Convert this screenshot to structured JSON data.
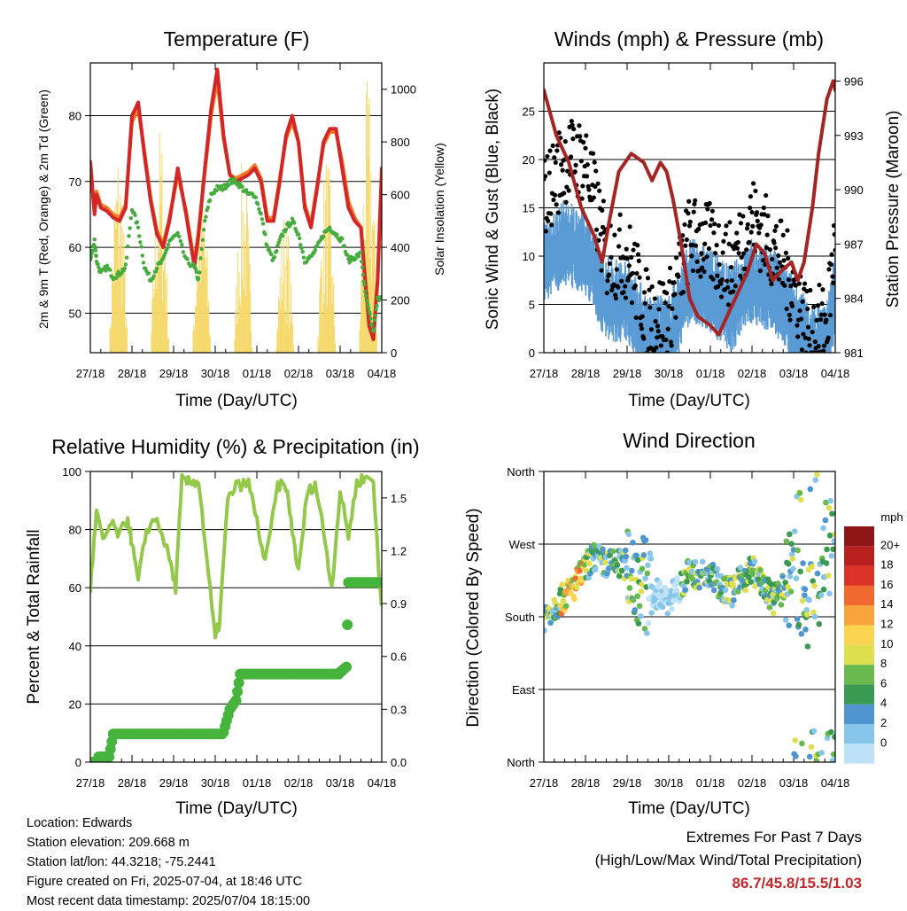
{
  "time_ticks": [
    "27/18",
    "28/18",
    "29/18",
    "30/18",
    "01/18",
    "02/18",
    "03/18",
    "04/18"
  ],
  "xlabel": "Time (Day/UTC)",
  "chart_data": [
    {
      "type": "line",
      "title": "Temperature (F)",
      "xlabel": "Time (Day/UTC)",
      "ylabel": "2m & 9m T (Red, Orange) & 2m Td (Green)",
      "ylabel_right": "Solar Insolation (Yellow)",
      "ylim": [
        44,
        88
      ],
      "yticks": [
        "50",
        "60",
        "70",
        "80"
      ],
      "ylim_right": [
        0,
        1100
      ],
      "yticks_right": [
        "0",
        "200",
        "400",
        "600",
        "800",
        "1000"
      ],
      "x": [
        0,
        0.1,
        0.15,
        0.25,
        0.4,
        0.55,
        0.7,
        0.85,
        1.0,
        1.15,
        1.3,
        1.45,
        1.6,
        1.75,
        1.9,
        2.1,
        2.3,
        2.5,
        2.6,
        2.75,
        2.9,
        3.05,
        3.2,
        3.35,
        3.5,
        3.65,
        3.8,
        3.95,
        4.1,
        4.25,
        4.4,
        4.55,
        4.7,
        4.85,
        5.0,
        5.15,
        5.3,
        5.45,
        5.6,
        5.75,
        5.9,
        6.05,
        6.2,
        6.35,
        6.5,
        6.6,
        6.7,
        6.8,
        6.9,
        7.0
      ],
      "series": [
        {
          "name": "2m T",
          "color": "#d42626",
          "values": [
            73,
            65,
            68,
            66,
            65.5,
            64.5,
            64,
            66,
            80,
            82,
            74,
            67,
            62,
            60,
            64,
            72,
            65,
            57,
            62,
            72,
            81,
            87,
            77,
            71,
            70,
            70.5,
            71,
            72,
            70,
            64,
            64,
            70,
            77,
            80,
            76,
            66,
            63,
            69,
            76,
            78,
            78,
            72,
            66,
            64,
            63,
            55,
            48,
            46,
            55,
            72
          ]
        },
        {
          "name": "9m T",
          "color": "#f07e26",
          "values": [
            72.5,
            65.5,
            68.5,
            66.5,
            66,
            65,
            64.5,
            66.5,
            79,
            81,
            74.5,
            67.5,
            62.5,
            60.5,
            64.5,
            71,
            65.5,
            57.5,
            62.5,
            71.5,
            80,
            85.5,
            76.5,
            71,
            70.5,
            71,
            71.5,
            72.5,
            70.5,
            64.5,
            64.5,
            70.5,
            76.5,
            79,
            76,
            66.5,
            63.5,
            69.5,
            75.5,
            77.5,
            77.5,
            73,
            67,
            64.5,
            63,
            55.5,
            48.5,
            46.5,
            55,
            71
          ]
        },
        {
          "name": "2m Td",
          "color": "#46ac3e",
          "values": [
            58,
            61,
            58,
            56,
            57,
            55.5,
            56,
            57,
            66,
            63,
            57,
            55,
            57,
            58,
            61,
            62,
            58,
            57,
            55,
            64,
            68,
            69,
            69,
            70,
            70,
            69,
            68,
            68,
            65,
            60,
            58,
            61,
            63,
            64,
            62,
            58,
            58.5,
            60,
            62,
            63,
            62,
            61,
            58,
            58.5,
            59,
            53,
            50,
            47,
            52,
            53
          ]
        }
      ],
      "solar_days": [
        0,
        1,
        2,
        3,
        4,
        5,
        6
      ],
      "solar_peaks": [
        820,
        880,
        700,
        760,
        560,
        780,
        1050
      ]
    },
    {
      "type": "scatter",
      "title": "Winds (mph) & Pressure (mb)",
      "xlabel": "Time (Day/UTC)",
      "ylabel": "Sonic Wind & Gust (Blue, Black)",
      "ylabel_right": "Station Pressure (Maroon)",
      "ylim": [
        0,
        30
      ],
      "yticks": [
        "0",
        "5",
        "10",
        "15",
        "20",
        "25"
      ],
      "ylim_right": [
        981,
        997
      ],
      "yticks_right": [
        "981",
        "984",
        "987",
        "990",
        "993",
        "996"
      ],
      "gust_envelope": [
        [
          0,
          16
        ],
        [
          0.5,
          20
        ],
        [
          1.0,
          20
        ],
        [
          1.5,
          10
        ],
        [
          2.0,
          10
        ],
        [
          2.5,
          4
        ],
        [
          3.0,
          4
        ],
        [
          3.5,
          12
        ],
        [
          4.0,
          11
        ],
        [
          4.5,
          9
        ],
        [
          5.0,
          14
        ],
        [
          5.5,
          11
        ],
        [
          6.0,
          7
        ],
        [
          6.4,
          2
        ],
        [
          6.8,
          3
        ],
        [
          7.0,
          12
        ]
      ],
      "wind_envelope": [
        [
          0,
          10
        ],
        [
          0.5,
          12
        ],
        [
          1.0,
          11
        ],
        [
          1.5,
          6
        ],
        [
          2.0,
          6
        ],
        [
          2.5,
          2
        ],
        [
          3.0,
          2
        ],
        [
          3.5,
          8
        ],
        [
          4.0,
          7
        ],
        [
          4.5,
          5
        ],
        [
          5.0,
          8
        ],
        [
          5.5,
          7
        ],
        [
          6.0,
          4
        ],
        [
          6.4,
          1
        ],
        [
          6.8,
          1.5
        ],
        [
          7.0,
          7
        ]
      ],
      "pressure": {
        "name": "Station Pressure",
        "color": "#a52424",
        "x": [
          0,
          0.3,
          0.6,
          0.9,
          1.2,
          1.4,
          1.55,
          1.8,
          2.1,
          2.4,
          2.6,
          2.8,
          2.95,
          3.1,
          3.3,
          3.5,
          3.7,
          4.0,
          4.2,
          4.4,
          4.6,
          4.9,
          5.1,
          5.3,
          5.5,
          5.7,
          5.95,
          6.1,
          6.25,
          6.45,
          6.6,
          6.8,
          6.95,
          7.0
        ],
        "values": [
          995.5,
          993,
          991.5,
          989,
          987.5,
          986,
          988,
          991,
          992,
          991.5,
          990.5,
          991.5,
          991,
          989.5,
          987,
          984,
          983,
          982.5,
          982,
          983,
          984,
          985.5,
          987,
          986.5,
          985,
          985.5,
          986,
          985,
          986,
          989,
          992,
          995,
          996,
          995.5
        ]
      }
    },
    {
      "type": "line",
      "title": "Relative Humidity (%) & Precipitation (in)",
      "xlabel": "Time (Day/UTC)",
      "ylabel": "Percent & Total Rainfall",
      "ylim": [
        0,
        100
      ],
      "yticks": [
        "0",
        "20",
        "40",
        "60",
        "80",
        "100"
      ],
      "ylim_right": [
        0,
        1.65
      ],
      "yticks_right": [
        "0.0",
        "0.3",
        "0.6",
        "0.9",
        "1.2",
        "1.5"
      ],
      "rh": {
        "name": "Relative Humidity",
        "color": "#94c84a",
        "x": [
          0,
          0.15,
          0.3,
          0.5,
          0.7,
          0.9,
          1.0,
          1.15,
          1.35,
          1.6,
          1.9,
          2.05,
          2.2,
          2.4,
          2.6,
          2.8,
          3.0,
          3.1,
          3.3,
          3.5,
          3.8,
          4.0,
          4.2,
          4.5,
          4.7,
          4.85,
          5.0,
          5.2,
          5.4,
          5.6,
          5.8,
          6.0,
          6.2,
          6.4,
          6.6,
          6.8,
          6.95,
          7.0
        ],
        "values": [
          60,
          86,
          76,
          82,
          78,
          84,
          75,
          62,
          80,
          84,
          70,
          60,
          97,
          96,
          97,
          70,
          42,
          48,
          90,
          95,
          96,
          83,
          68,
          95,
          95,
          80,
          65,
          92,
          96,
          80,
          60,
          93,
          78,
          96,
          98,
          97,
          60,
          55
        ]
      },
      "precip": {
        "name": "Total Precipitation",
        "color": "#46b43c",
        "x": [
          0,
          0.2,
          0.45,
          0.55,
          1.2,
          2.0,
          2.9,
          3.2,
          3.35,
          3.5,
          3.6,
          5.0,
          6.0,
          6.15,
          6.2,
          6.4,
          6.6,
          7.0
        ],
        "values": [
          0.0,
          0.03,
          0.03,
          0.16,
          0.16,
          0.16,
          0.16,
          0.17,
          0.3,
          0.35,
          0.5,
          0.5,
          0.51,
          0.54,
          1.02,
          1.02,
          1.02,
          1.02
        ]
      }
    },
    {
      "type": "scatter",
      "title": "Wind Direction",
      "xlabel": "Time (Day/UTC)",
      "ylabel": "Direction (Colored By Speed)",
      "ylim": [
        0,
        360
      ],
      "yticks": [
        "North",
        "East",
        "South",
        "West",
        "North"
      ],
      "colorbar_title": "mph",
      "colorbar_labels": [
        "0",
        "2",
        "4",
        "6",
        "8",
        "10",
        "12",
        "14",
        "16",
        "18",
        "20+"
      ],
      "colorbar_colors": [
        "#bfe3f6",
        "#88c5ea",
        "#4f95cf",
        "#3b9a52",
        "#6ab94f",
        "#dfe04f",
        "#fbd552",
        "#f8a43a",
        "#ef6a2c",
        "#dd3226",
        "#b8201e",
        "#8e1616"
      ],
      "direction_trend": [
        [
          0,
          180
        ],
        [
          0.3,
          195
        ],
        [
          0.7,
          215
        ],
        [
          1.0,
          240
        ],
        [
          1.2,
          255
        ],
        [
          1.5,
          245
        ],
        [
          2.0,
          245
        ],
        [
          2.5,
          215
        ],
        [
          3.0,
          200
        ],
        [
          3.5,
          235
        ],
        [
          4.0,
          230
        ],
        [
          4.5,
          210
        ],
        [
          5.0,
          240
        ],
        [
          5.5,
          200
        ],
        [
          6.0,
          230
        ],
        [
          6.4,
          190
        ],
        [
          6.8,
          250
        ],
        [
          7.0,
          270
        ]
      ]
    }
  ],
  "info": {
    "location": "Location: Edwards",
    "elevation": "Station elevation: 209.668 m",
    "latlon": "Station lat/lon: 44.3218; -75.2441",
    "created": "Figure created on Fri, 2025-07-04, at 18:46 UTC",
    "recent": "Most recent data timestamp: 2025/07/04 18:15:00"
  },
  "extremes": {
    "line1": "Extremes For Past 7 Days",
    "line2": "(High/Low/Max Wind/Total Precipitation)",
    "values": "86.7/45.8/15.5/1.03"
  }
}
